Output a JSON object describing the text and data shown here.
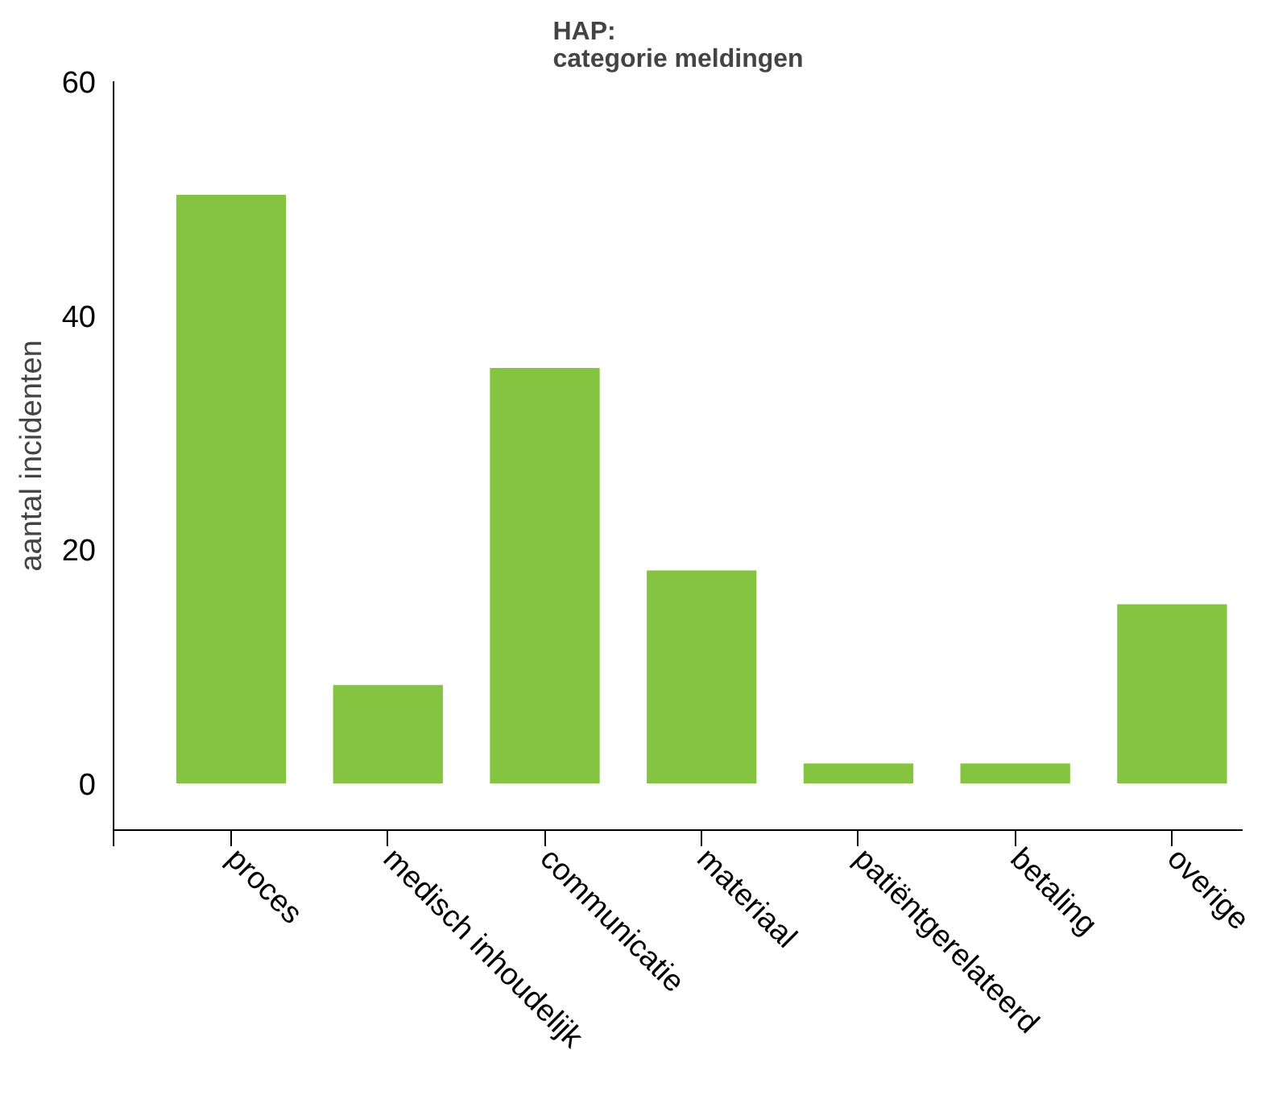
{
  "chart_data": {
    "type": "bar",
    "title": "HAP:\ncategorie meldingen",
    "ylabel": "aantal incidenten",
    "categories": [
      "proces",
      "medisch inhoudelijk",
      "communicatie",
      "materiaal",
      "patiëntgerelateerd",
      "betaling",
      "overige"
    ],
    "values": [
      50.3,
      8.4,
      35.5,
      18.2,
      1.7,
      1.7,
      15.3
    ],
    "color": "#85c441",
    "ylim": [
      -4,
      60
    ],
    "yticks": [
      0,
      20,
      40,
      60
    ],
    "grid": false
  }
}
